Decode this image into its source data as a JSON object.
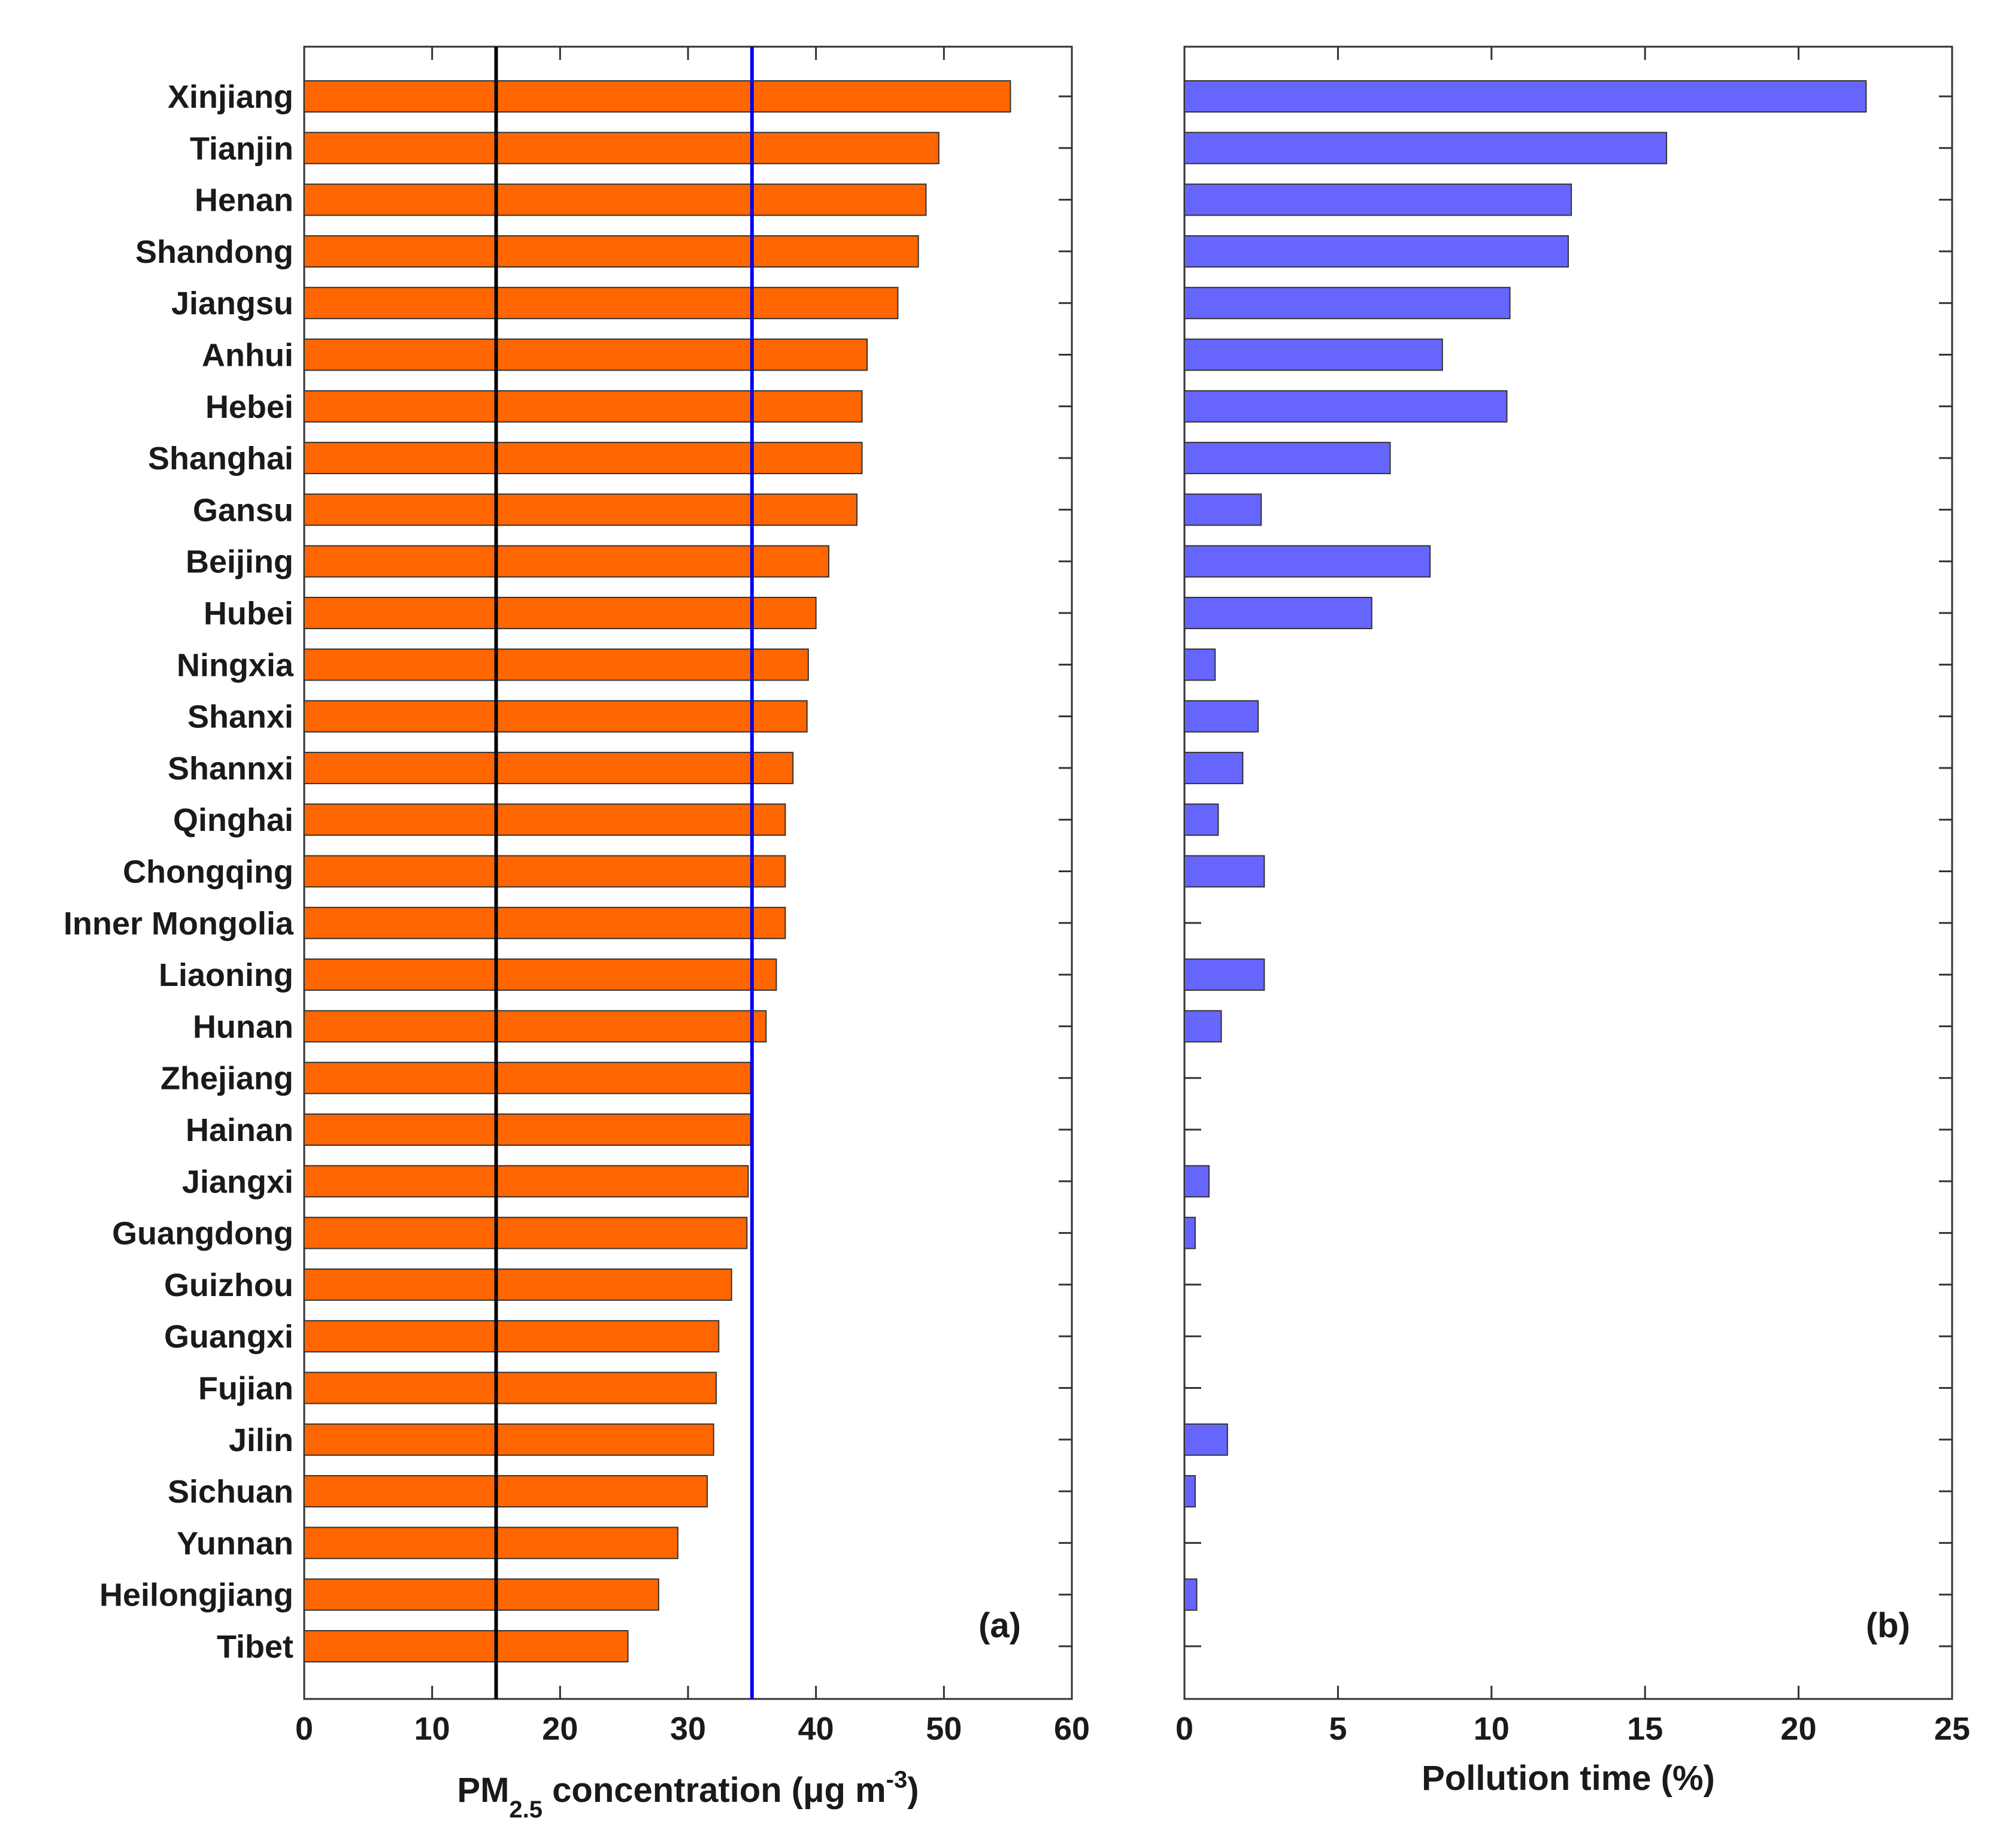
{
  "chart_data": [
    {
      "type": "bar",
      "orientation": "horizontal",
      "panel_label": "(a)",
      "categories": [
        "Xinjiang",
        "Tianjin",
        "Henan",
        "Shandong",
        "Jiangsu",
        "Anhui",
        "Hebei",
        "Shanghai",
        "Gansu",
        "Beijing",
        "Hubei",
        "Ningxia",
        "Shanxi",
        "Shannxi",
        "Qinghai",
        "Chongqing",
        "Inner Mongolia",
        "Liaoning",
        "Hunan",
        "Zhejiang",
        "Hainan",
        "Jiangxi",
        "Guangdong",
        "Guizhou",
        "Guangxi",
        "Fujian",
        "Jilin",
        "Sichuan",
        "Yunnan",
        "Heilongjiang",
        "Tibet"
      ],
      "values": [
        55.2,
        49.6,
        48.6,
        48.0,
        46.4,
        44.0,
        43.6,
        43.6,
        43.2,
        41.0,
        40.0,
        39.4,
        39.3,
        38.2,
        37.6,
        37.6,
        37.6,
        36.9,
        36.1,
        34.9,
        34.9,
        34.7,
        34.6,
        33.4,
        32.4,
        32.2,
        32.0,
        31.5,
        29.2,
        27.7,
        25.3
      ],
      "xlabel_main": "PM",
      "xlabel_sub": "2.5",
      "xlabel_rest": " concentration (μg m",
      "xlabel_sup": "-3",
      "xlabel_end": ")",
      "xlim": [
        0,
        60
      ],
      "xticks": [
        "0",
        "10",
        "20",
        "30",
        "40",
        "50",
        "60"
      ],
      "reference_lines": [
        {
          "value": 15,
          "color": "#000000"
        },
        {
          "value": 35,
          "color": "#0000ee"
        }
      ],
      "bar_color": "#ff6600"
    },
    {
      "type": "bar",
      "orientation": "horizontal",
      "panel_label": "(b)",
      "categories": [
        "Xinjiang",
        "Tianjin",
        "Henan",
        "Shandong",
        "Jiangsu",
        "Anhui",
        "Hebei",
        "Shanghai",
        "Gansu",
        "Beijing",
        "Hubei",
        "Ningxia",
        "Shanxi",
        "Shannxi",
        "Qinghai",
        "Chongqing",
        "Inner Mongolia",
        "Liaoning",
        "Hunan",
        "Zhejiang",
        "Hainan",
        "Jiangxi",
        "Guangdong",
        "Guizhou",
        "Guangxi",
        "Fujian",
        "Jilin",
        "Sichuan",
        "Yunnan",
        "Heilongjiang",
        "Tibet"
      ],
      "values": [
        22.2,
        15.7,
        12.6,
        12.5,
        10.6,
        8.4,
        10.5,
        6.7,
        2.5,
        8.0,
        6.1,
        1.0,
        2.4,
        1.9,
        1.1,
        2.6,
        0,
        2.6,
        1.2,
        0,
        0,
        0.8,
        0.35,
        0,
        0,
        0,
        1.4,
        0.35,
        0,
        0.4,
        0
      ],
      "xlabel": "Pollution time (%)",
      "xlim": [
        0,
        25
      ],
      "xticks": [
        "0",
        "5",
        "10",
        "15",
        "20",
        "25"
      ],
      "bar_color": "#6666ff"
    }
  ]
}
